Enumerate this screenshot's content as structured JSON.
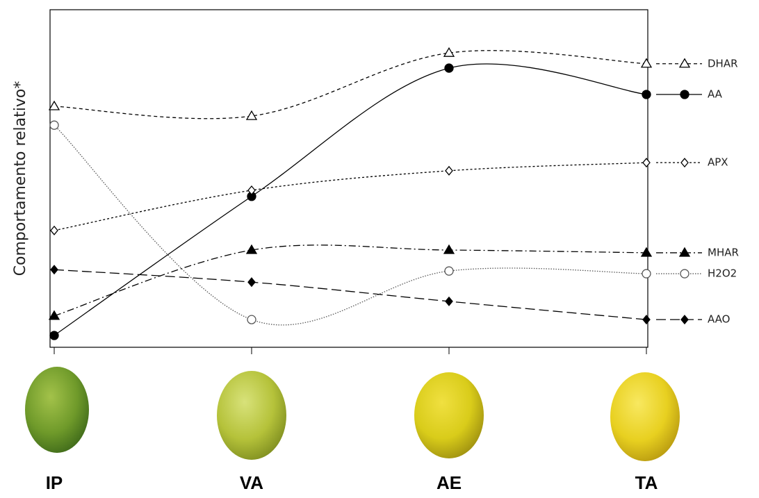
{
  "chart_data": {
    "type": "line",
    "y_label": "Comportamento relativo*",
    "categories": [
      "IP",
      "VA",
      "AE",
      "TA"
    ],
    "ylim": [
      0,
      100
    ],
    "series": [
      {
        "name": "DHAR",
        "color": "#000000",
        "marker": "triangle-open",
        "dash": "5,4",
        "values": [
          71.4,
          68.5,
          87.2,
          84.0
        ]
      },
      {
        "name": "AA",
        "color": "#000000",
        "marker": "circle-filled",
        "dash": "none",
        "values": [
          3.5,
          44.7,
          82.7,
          74.9
        ]
      },
      {
        "name": "APX",
        "color": "#000000",
        "marker": "diamond-open",
        "dash": "3,3",
        "values": [
          34.6,
          46.5,
          52.3,
          54.7
        ]
      },
      {
        "name": "MHAR",
        "color": "#000000",
        "marker": "triangle-filled",
        "dash": "10,4,2,4",
        "values": [
          9.3,
          28.8,
          28.8,
          28.0
        ]
      },
      {
        "name": "H2O2",
        "color": "#555555",
        "marker": "circle-open",
        "dash": "1.5,2",
        "values": [
          65.8,
          8.2,
          22.6,
          21.8
        ]
      },
      {
        "name": "AAO",
        "color": "#000000",
        "marker": "diamond-filled",
        "dash": "14,6",
        "values": [
          23.0,
          19.3,
          13.6,
          8.2
        ]
      }
    ]
  }
}
